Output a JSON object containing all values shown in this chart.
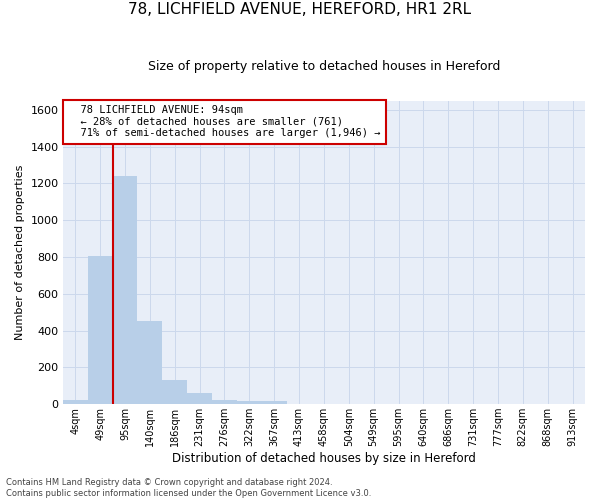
{
  "title1": "78, LICHFIELD AVENUE, HEREFORD, HR1 2RL",
  "title2": "Size of property relative to detached houses in Hereford",
  "xlabel": "Distribution of detached houses by size in Hereford",
  "ylabel": "Number of detached properties",
  "annotation_line1": "  78 LICHFIELD AVENUE: 94sqm",
  "annotation_line2": "  ← 28% of detached houses are smaller (761)",
  "annotation_line3": "  71% of semi-detached houses are larger (1,946) →",
  "footer1": "Contains HM Land Registry data © Crown copyright and database right 2024.",
  "footer2": "Contains public sector information licensed under the Open Government Licence v3.0.",
  "bin_labels": [
    "4sqm",
    "49sqm",
    "95sqm",
    "140sqm",
    "186sqm",
    "231sqm",
    "276sqm",
    "322sqm",
    "367sqm",
    "413sqm",
    "458sqm",
    "504sqm",
    "549sqm",
    "595sqm",
    "640sqm",
    "686sqm",
    "731sqm",
    "777sqm",
    "822sqm",
    "868sqm",
    "913sqm"
  ],
  "bar_values": [
    22,
    805,
    1240,
    450,
    130,
    62,
    25,
    18,
    15,
    0,
    0,
    0,
    0,
    0,
    0,
    0,
    0,
    0,
    0,
    0,
    0
  ],
  "bar_color": "#b8cfe8",
  "grid_color": "#ccd8ec",
  "background_color": "#e8eef8",
  "marker_color": "#cc0000",
  "ylim": [
    0,
    1650
  ],
  "yticks": [
    0,
    200,
    400,
    600,
    800,
    1000,
    1200,
    1400,
    1600
  ],
  "annotation_box_facecolor": "white",
  "annotation_box_edgecolor": "#cc0000",
  "title1_fontsize": 11,
  "title2_fontsize": 9
}
